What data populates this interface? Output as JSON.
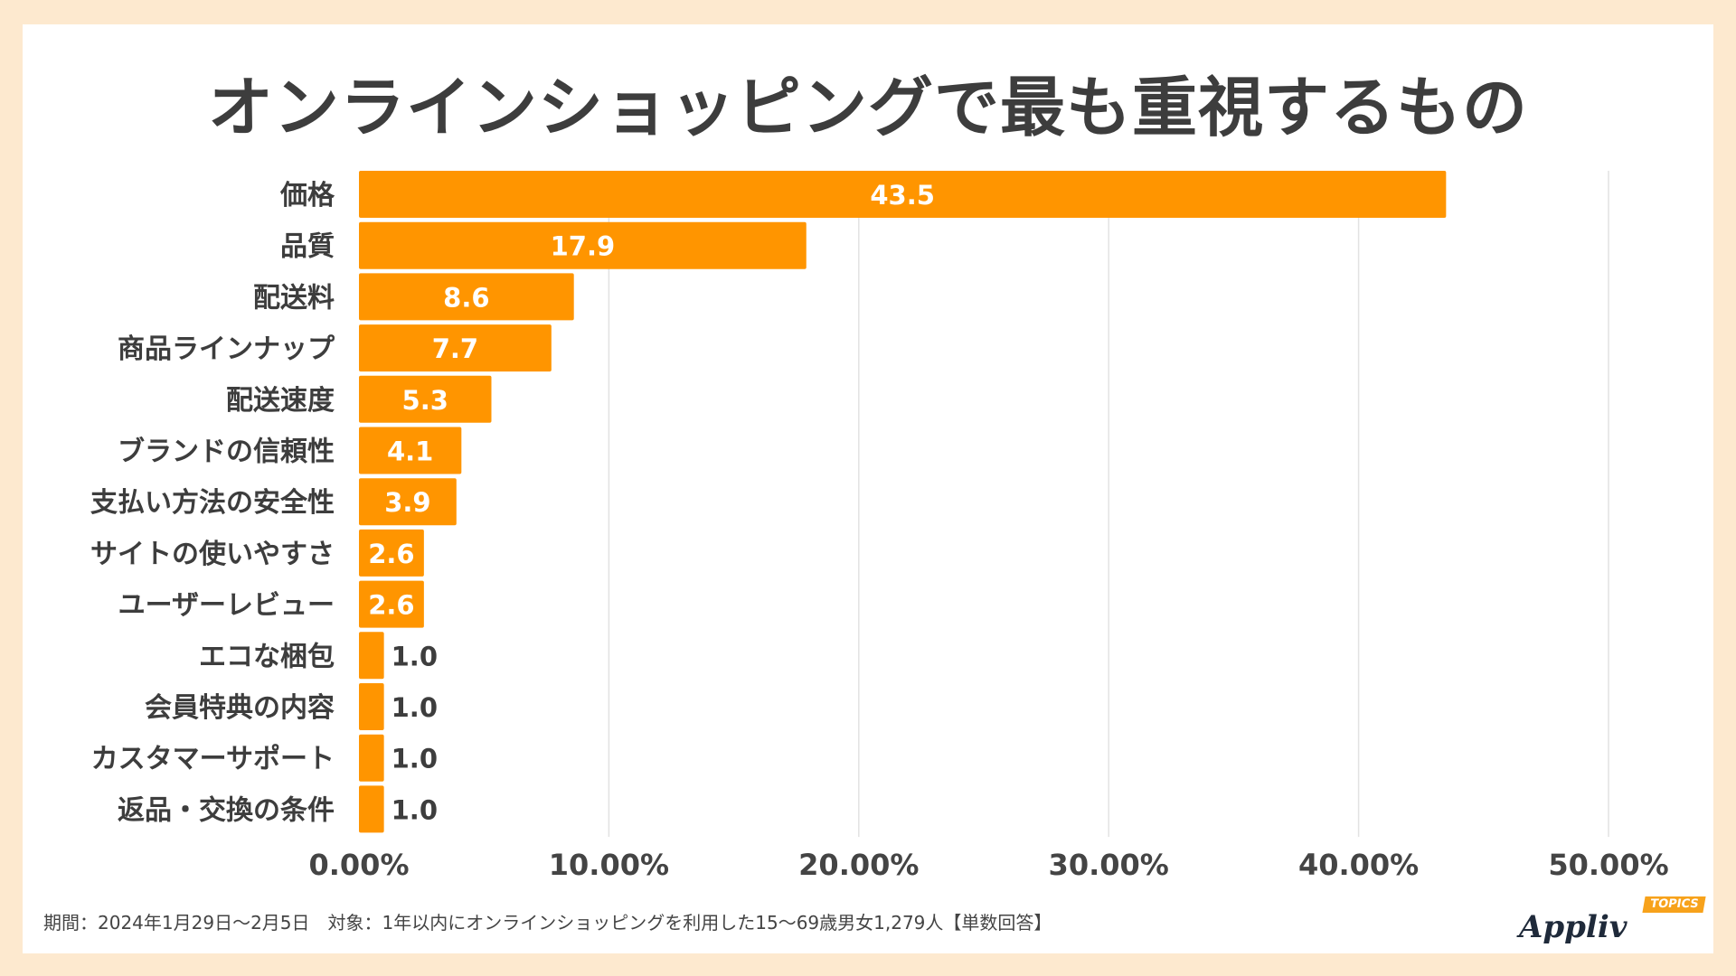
{
  "chart_data": {
    "type": "bar",
    "orientation": "horizontal",
    "title": "オンラインショッピングで最も重視するもの",
    "categories": [
      "価格",
      "品質",
      "配送料",
      "商品ラインナップ",
      "配送速度",
      "ブランドの信頼性",
      "支払い方法の安全性",
      "サイトの使いやすさ",
      "ユーザーレビュー",
      "エコな梱包",
      "会員特典の内容",
      "カスタマーサポート",
      "返品・交換の条件"
    ],
    "values": [
      43.5,
      17.9,
      8.6,
      7.7,
      5.3,
      4.1,
      3.9,
      2.6,
      2.6,
      1.0,
      1.0,
      1.0,
      1.0
    ],
    "value_labels": [
      "43.5",
      "17.9",
      "8.6",
      "7.7",
      "5.3",
      "4.1",
      "3.9",
      "2.6",
      "2.6",
      "1.0",
      "1.0",
      "1.0",
      "1.0"
    ],
    "xlim": [
      0,
      50
    ],
    "x_ticks": [
      0,
      10,
      20,
      30,
      40,
      50
    ],
    "x_tick_labels": [
      "0.00%",
      "10.00%",
      "20.00%",
      "30.00%",
      "40.00%",
      "50.00%"
    ],
    "grid": "vertical",
    "bar_color": "#ff9500"
  },
  "footer": "期間：2024年1月29日～2月5日　対象：1年以内にオンラインショッピングを利用した15～69歳男女1,279人【単数回答】",
  "logo": {
    "word": "Appliv",
    "badge": "TOPICS"
  }
}
